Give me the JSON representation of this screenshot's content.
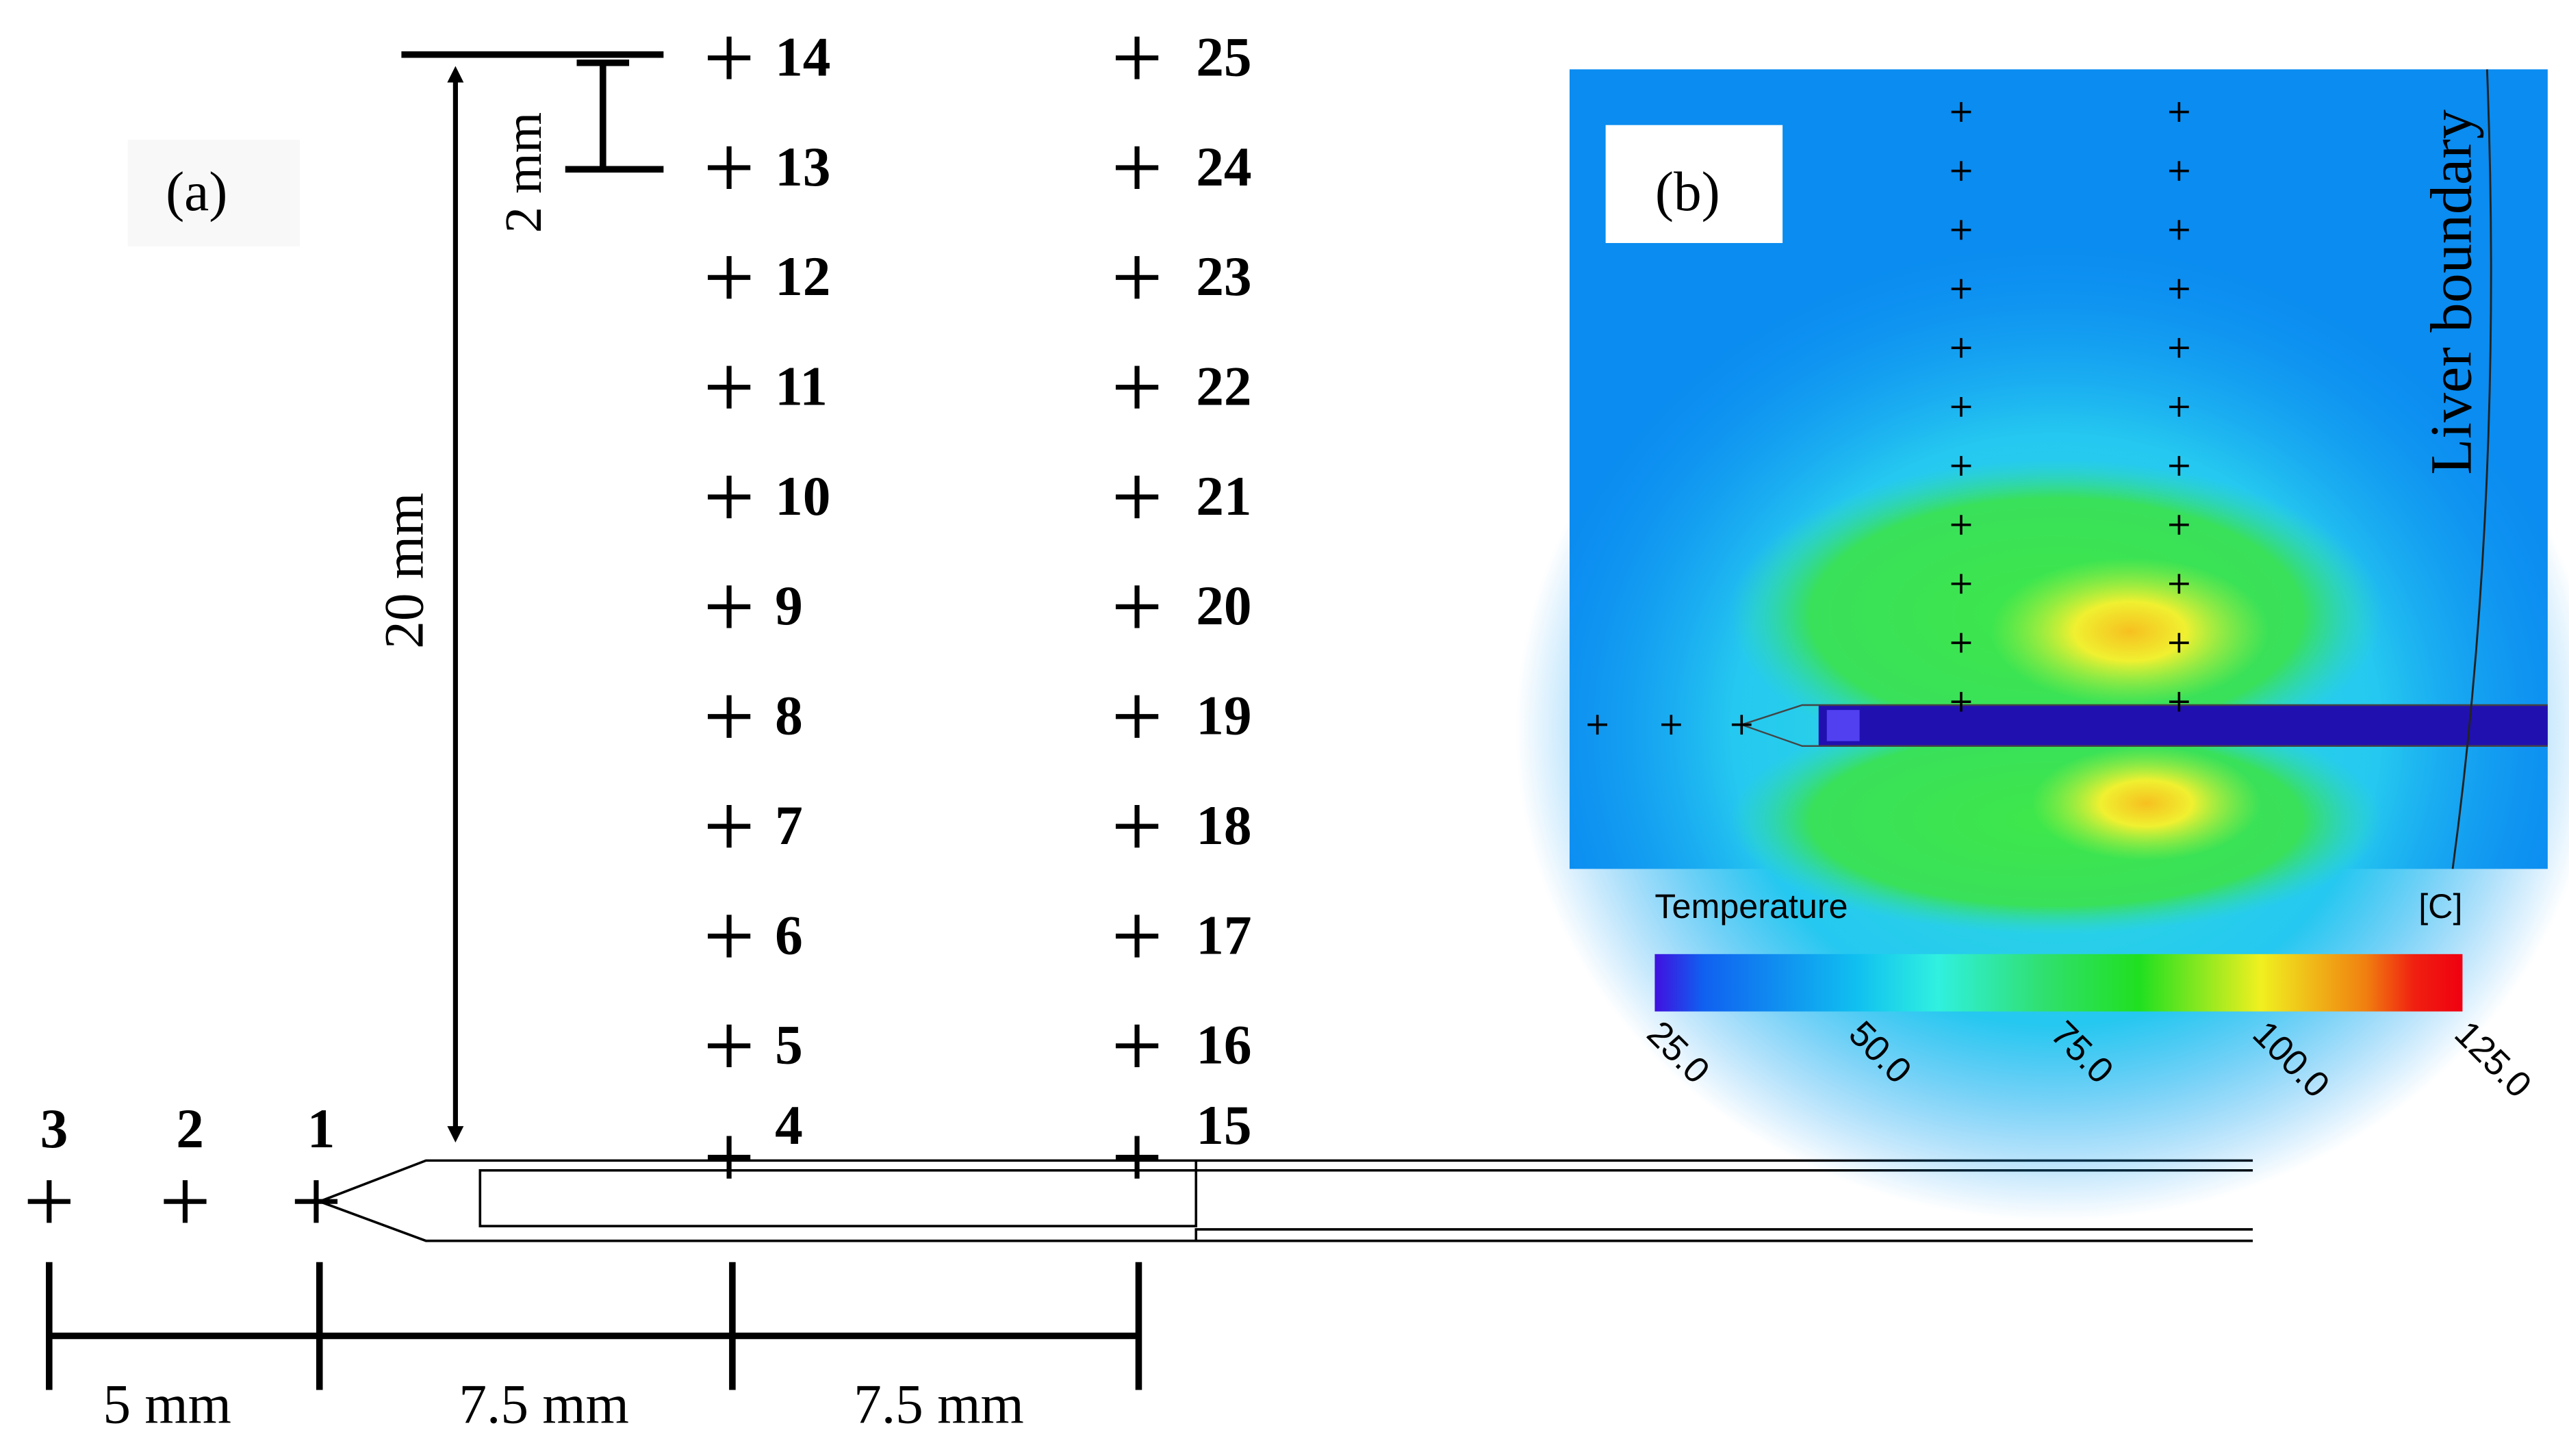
{
  "panel_a": {
    "label": "(a)",
    "dim_top": "2 mm",
    "dim_vertical": "20 mm",
    "dim_bottom": [
      "5 mm",
      "7.5 mm",
      "7.5 mm"
    ],
    "points": [
      "1",
      "2",
      "3",
      "4",
      "5",
      "6",
      "7",
      "8",
      "9",
      "10",
      "11",
      "12",
      "13",
      "14",
      "15",
      "16",
      "17",
      "18",
      "19",
      "20",
      "21",
      "22",
      "23",
      "24",
      "25"
    ]
  },
  "panel_b": {
    "label": "(b)",
    "boundary_label": "Liver boundary",
    "colorbar": {
      "title": "Temperature",
      "unit": "[C]",
      "ticks": [
        "25.0",
        "50.0",
        "75.0",
        "100.0",
        "125.0"
      ]
    }
  }
}
